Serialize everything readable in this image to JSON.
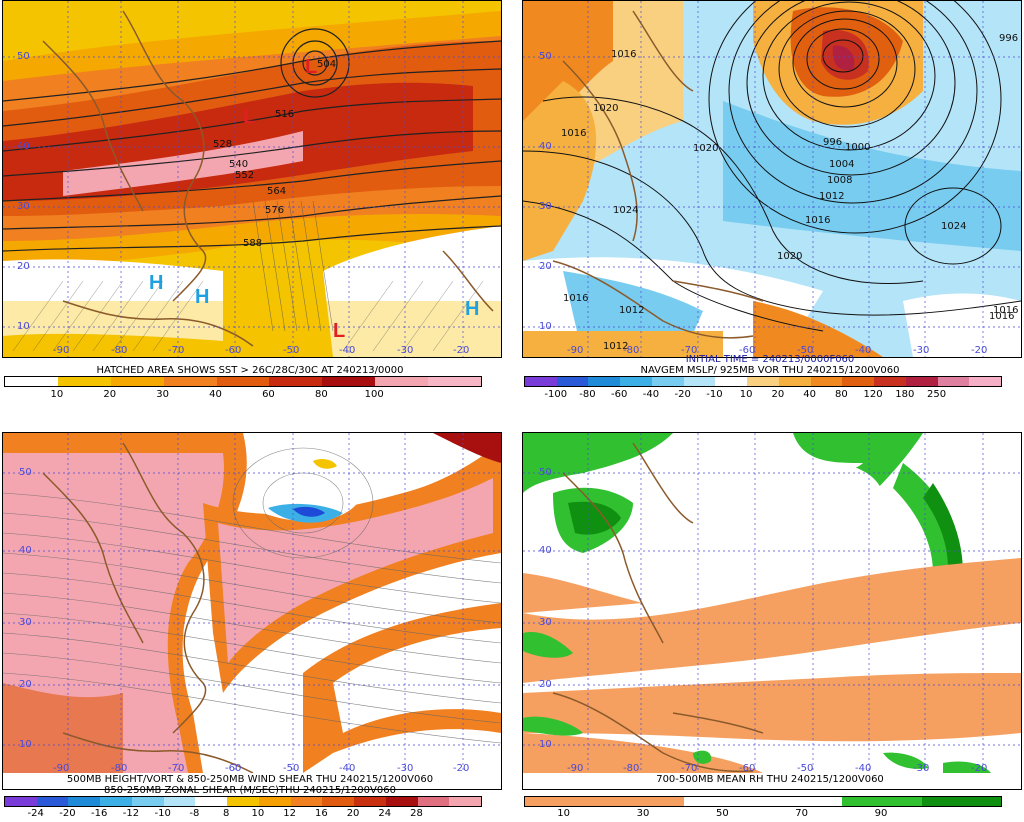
{
  "panels": [
    {
      "id": "p1",
      "caption_lines": [
        "HATCHED AREA SHOWS SST > 26C/28C/30C AT 240213/0000"
      ],
      "colorbar": {
        "colors": [
          "#ffffff",
          "#f5c400",
          "#f5a800",
          "#f08020",
          "#e25c10",
          "#c82a10",
          "#a80e0e",
          "#f4a6b0",
          "#f7b6c6"
        ],
        "ticks": [
          "10",
          "20",
          "30",
          "40",
          "60",
          "80",
          "100"
        ]
      },
      "lat_labels": [
        "50",
        "40",
        "30",
        "20",
        "10"
      ],
      "lon_labels": [
        "-90",
        "-80",
        "-70",
        "-60",
        "-50",
        "-40",
        "-30",
        "-20"
      ],
      "contour_labels": [
        "516",
        "528",
        "540",
        "552",
        "564",
        "576",
        "588",
        "504"
      ],
      "pressure_centers": [
        {
          "letter": "L",
          "kind": "low"
        },
        {
          "letter": "L",
          "kind": "low"
        },
        {
          "letter": "L",
          "kind": "low"
        },
        {
          "letter": "H",
          "kind": "high"
        },
        {
          "letter": "H",
          "kind": "high"
        },
        {
          "letter": "H",
          "kind": "high"
        }
      ]
    },
    {
      "id": "p2",
      "caption_lines": [
        "INITIAL TIME = 240213/0000F060",
        "NAVGEM MSLP/ 925MB VOR THU 240215/1200V060"
      ],
      "colorbar": {
        "colors": [
          "#7a3cd8",
          "#2a5ad8",
          "#1e8ad8",
          "#3cb0e6",
          "#78ccf0",
          "#b4e4f8",
          "#ffffff",
          "#f8d080",
          "#f5b040",
          "#f08a20",
          "#e06010",
          "#c83020",
          "#b02040",
          "#e080a0",
          "#f5b0c8"
        ],
        "ticks": [
          "-100",
          "-80",
          "-60",
          "-40",
          "-20",
          "-10",
          "10",
          "20",
          "40",
          "80",
          "120",
          "180",
          "250"
        ]
      },
      "lat_labels": [
        "50",
        "40",
        "30",
        "20",
        "10"
      ],
      "lon_labels": [
        "-90",
        "-80",
        "-70",
        "-60",
        "-50",
        "-40",
        "-30",
        "-20"
      ],
      "contour_labels": [
        "1016",
        "1016",
        "1020",
        "1020",
        "1024",
        "1020",
        "996",
        "1000",
        "1004",
        "1008",
        "1012",
        "1016",
        "1012",
        "1016",
        "1024",
        "1016",
        "1012",
        "1016",
        "996"
      ]
    },
    {
      "id": "p3",
      "caption_lines": [
        "500MB HEIGHT/VORT & 850-250MB WIND SHEAR THU 240215/1200V060",
        "850-250MB ZONAL SHEAR (M/SEC)THU 240215/1200V060"
      ],
      "colorbar": {
        "colors": [
          "#7a3cd8",
          "#2a5ad8",
          "#1e8ad8",
          "#3cb0e6",
          "#78ccf0",
          "#b4e4f8",
          "#ffffff",
          "#f5c400",
          "#f5a000",
          "#f08020",
          "#e05a10",
          "#c83010",
          "#a81010",
          "#e07080",
          "#f4a6b0"
        ],
        "ticks": [
          "-24",
          "-20",
          "-16",
          "-12",
          "-10",
          "-8",
          "8",
          "10",
          "12",
          "16",
          "20",
          "24",
          "28"
        ]
      },
      "lat_labels": [
        "50",
        "40",
        "30",
        "20",
        "10"
      ],
      "lon_labels": [
        "-90",
        "-80",
        "-70",
        "-60",
        "-50",
        "-40",
        "-30",
        "-20"
      ]
    },
    {
      "id": "p4",
      "caption_lines": [
        "700-500MB MEAN RH THU 240215/1200V060"
      ],
      "colorbar": {
        "colors": [
          "#f5a060",
          "#f5a060",
          "#ffffff",
          "#ffffff",
          "#30c030",
          "#109010"
        ],
        "ticks": [
          "10",
          "30",
          "50",
          "70",
          "90"
        ]
      },
      "lat_labels": [
        "50",
        "40",
        "30",
        "20",
        "10"
      ],
      "lon_labels": [
        "-90",
        "-80",
        "-70",
        "-60",
        "-50",
        "-40",
        "-30",
        "-20"
      ]
    }
  ]
}
